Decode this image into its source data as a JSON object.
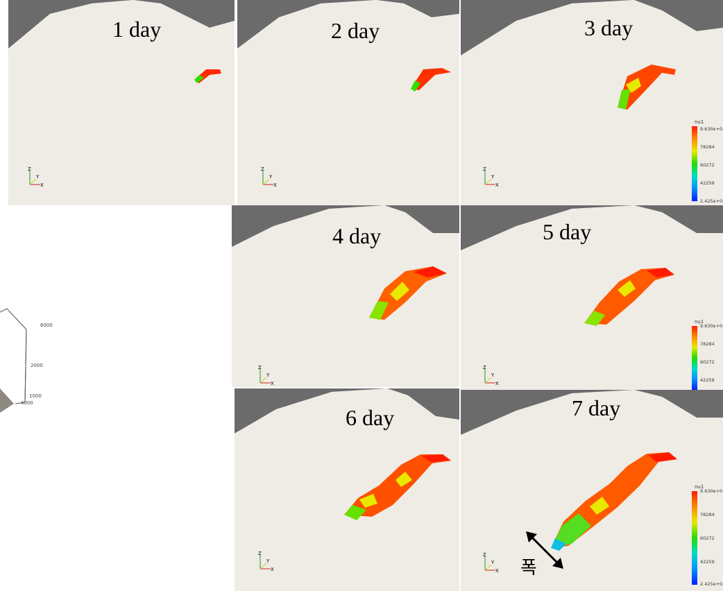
{
  "panels": [
    {
      "id": "p1",
      "label": "1 day"
    },
    {
      "id": "p2",
      "label": "2 day"
    },
    {
      "id": "p3",
      "label": "3 day"
    },
    {
      "id": "p4",
      "label": "4 day"
    },
    {
      "id": "p5",
      "label": "5 day"
    },
    {
      "id": "p6",
      "label": "6 day"
    },
    {
      "id": "p7",
      "label": "7 day"
    }
  ],
  "colorbar": {
    "title": "nu1",
    "ticks": [
      "9.630e+04",
      "78284",
      "60272",
      "42259",
      "2.425e+04"
    ]
  },
  "side_scale": {
    "ticks": [
      "6000",
      "2000",
      "1000",
      "4000"
    ]
  },
  "axes_labels": {
    "z": "Z",
    "y": "Y",
    "x": "X"
  },
  "annotation": {
    "width_label": "폭"
  },
  "colors": {
    "hot": "#ff1a00",
    "mid": "#ff8a00",
    "warm": "#e8e800",
    "cool": "#22dd00",
    "cyan": "#00dcc8",
    "terrain": "#efece6",
    "sky": "#6b6b6b"
  }
}
